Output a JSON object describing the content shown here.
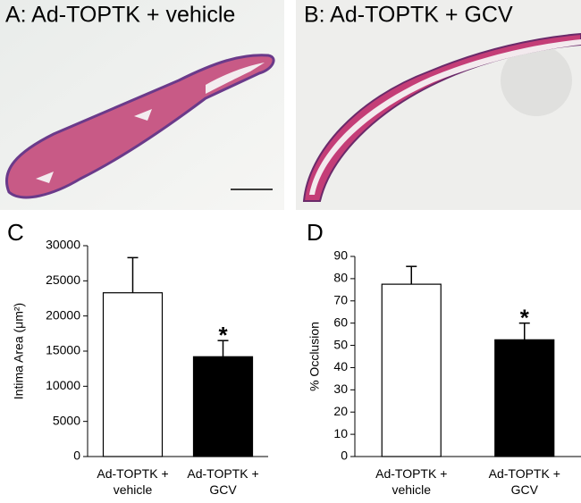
{
  "images": [
    {
      "label": "A: Ad-TOPTK + vehicle"
    },
    {
      "label": "B: Ad-TOPTK + GCV"
    }
  ],
  "chart_data": [
    {
      "type": "bar",
      "panel_label": "C",
      "y_label": "Intima Area (μm²)",
      "categories": [
        "Ad-TOPTK + vehicle",
        "Ad-TOPTK + GCV"
      ],
      "values": [
        23300,
        14200
      ],
      "errors": [
        5000,
        2300
      ],
      "colors": [
        "#ffffff",
        "#000000"
      ],
      "ylim": [
        0,
        30000
      ],
      "yticks": [
        0,
        5000,
        10000,
        15000,
        20000,
        25000,
        30000
      ],
      "annotations": [
        {
          "text": "*",
          "category": "Ad-TOPTK + GCV"
        }
      ]
    },
    {
      "type": "bar",
      "panel_label": "D",
      "y_label": "% Occlusion",
      "categories": [
        "Ad-TOPTK + vehicle",
        "Ad-TOPTK + GCV"
      ],
      "values": [
        77.5,
        52.5
      ],
      "errors": [
        8,
        7.5
      ],
      "colors": [
        "#ffffff",
        "#000000"
      ],
      "ylim": [
        0,
        90
      ],
      "yticks": [
        0,
        10,
        20,
        30,
        40,
        50,
        60,
        70,
        80,
        90
      ],
      "annotations": [
        {
          "text": "*",
          "category": "Ad-TOPTK + GCV"
        }
      ]
    }
  ]
}
